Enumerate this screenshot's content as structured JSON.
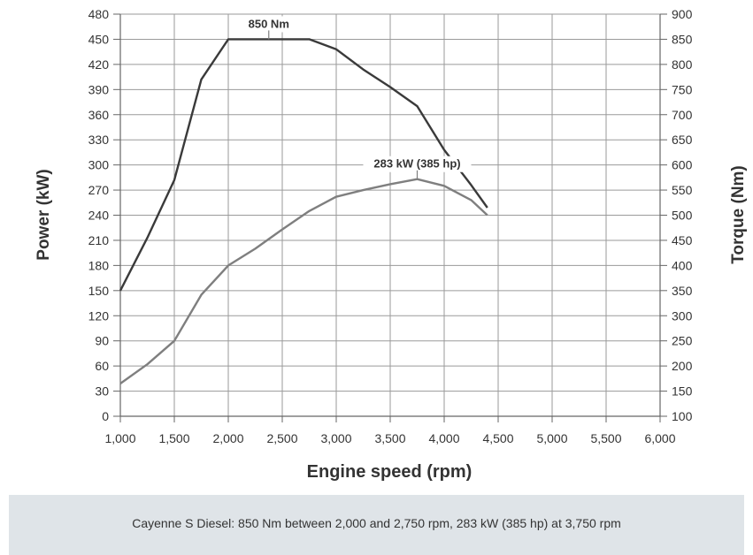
{
  "chart_data": {
    "type": "line",
    "xlabel": "Engine speed (rpm)",
    "ylabel_left": "Power (kW)",
    "ylabel_right": "Torque (Nm)",
    "x_ticks": [
      "1,000",
      "1,500",
      "2,000",
      "2,500",
      "3,000",
      "3,500",
      "4,000",
      "4,500",
      "5,000",
      "5,500",
      "6,000"
    ],
    "y_left_ticks": [
      "0",
      "30",
      "60",
      "90",
      "120",
      "150",
      "180",
      "210",
      "240",
      "270",
      "300",
      "330",
      "360",
      "390",
      "420",
      "450",
      "480"
    ],
    "y_right_ticks": [
      "100",
      "150",
      "200",
      "250",
      "300",
      "350",
      "400",
      "450",
      "500",
      "550",
      "600",
      "650",
      "700",
      "750",
      "800",
      "850",
      "900"
    ],
    "xlim": [
      1000,
      6000
    ],
    "ylim_left": [
      0,
      480
    ],
    "ylim_right": [
      100,
      900
    ],
    "grid": true,
    "series": [
      {
        "axis": "right",
        "color": "#3a3a3a",
        "label": "850 Nm",
        "x": [
          1000,
          1250,
          1500,
          1750,
          2000,
          2250,
          2500,
          2750,
          3000,
          3250,
          3500,
          3750,
          4000,
          4250,
          4400
        ],
        "y": [
          350,
          455,
          570,
          770,
          850,
          850,
          850,
          850,
          830,
          790,
          755,
          717,
          630,
          560,
          515
        ]
      },
      {
        "axis": "left",
        "color": "#7f7f7f",
        "label": "283 kW (385 hp)",
        "x": [
          1000,
          1250,
          1500,
          1750,
          2000,
          2250,
          2500,
          2750,
          3000,
          3250,
          3500,
          3750,
          4000,
          4250,
          4400
        ],
        "y": [
          39,
          62,
          90,
          145,
          180,
          200,
          223,
          245,
          262,
          270,
          277,
          283,
          275,
          258,
          240
        ]
      }
    ],
    "annotations": [
      {
        "text": "850 Nm",
        "x": 2375,
        "axis": "right",
        "y": 850
      },
      {
        "text": "283 kW (385 hp)",
        "x": 3750,
        "axis": "left",
        "y": 283
      }
    ]
  },
  "caption": "Cayenne S Diesel: 850 Nm between 2,000 and 2,750 rpm, 283 kW (385 hp) at 3,750 rpm"
}
